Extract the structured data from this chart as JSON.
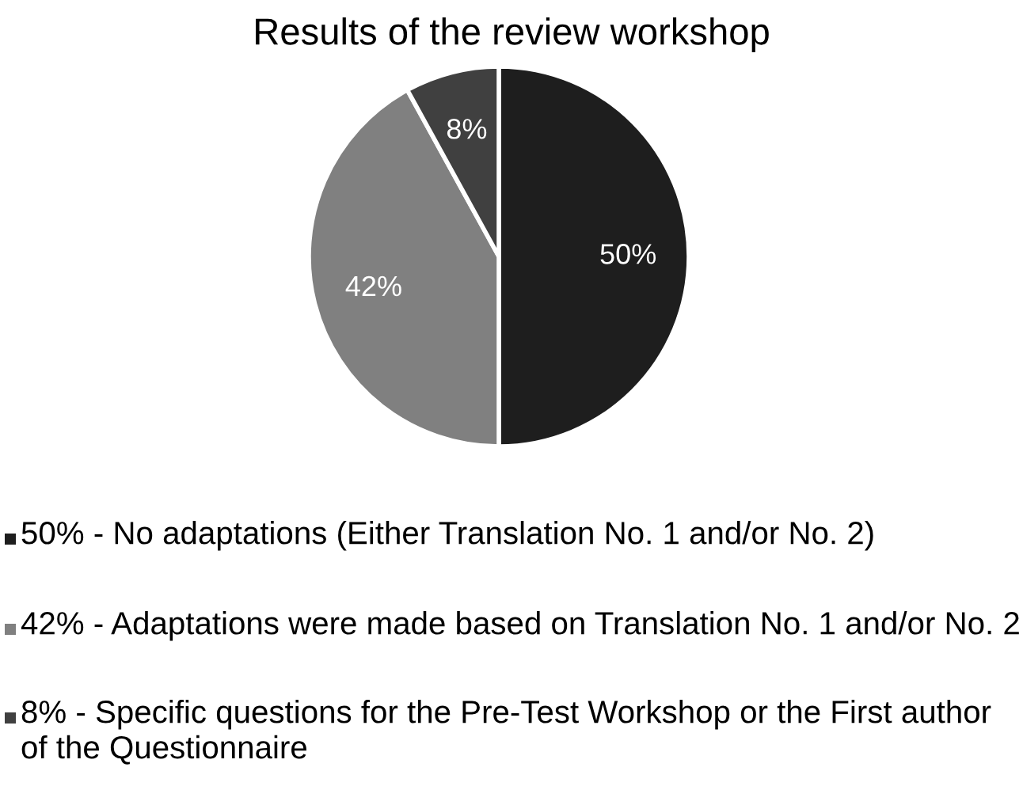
{
  "chart_data": {
    "type": "pie",
    "title": "Results of the review workshop",
    "categories": [
      "50% - No adaptations (Either Translation No. 1 and/or No. 2)",
      "42% - Adaptations were made based on Translation No. 1 and/or No. 2",
      "8% - Specific questions for the Pre-Test Workshop or the First author of the Questionnaire"
    ],
    "values": [
      50,
      42,
      8
    ],
    "colors": [
      "#1e1e1e",
      "#808080",
      "#404040"
    ],
    "value_labels": [
      "50%",
      "42%",
      "8%"
    ],
    "legend": "bottom"
  }
}
